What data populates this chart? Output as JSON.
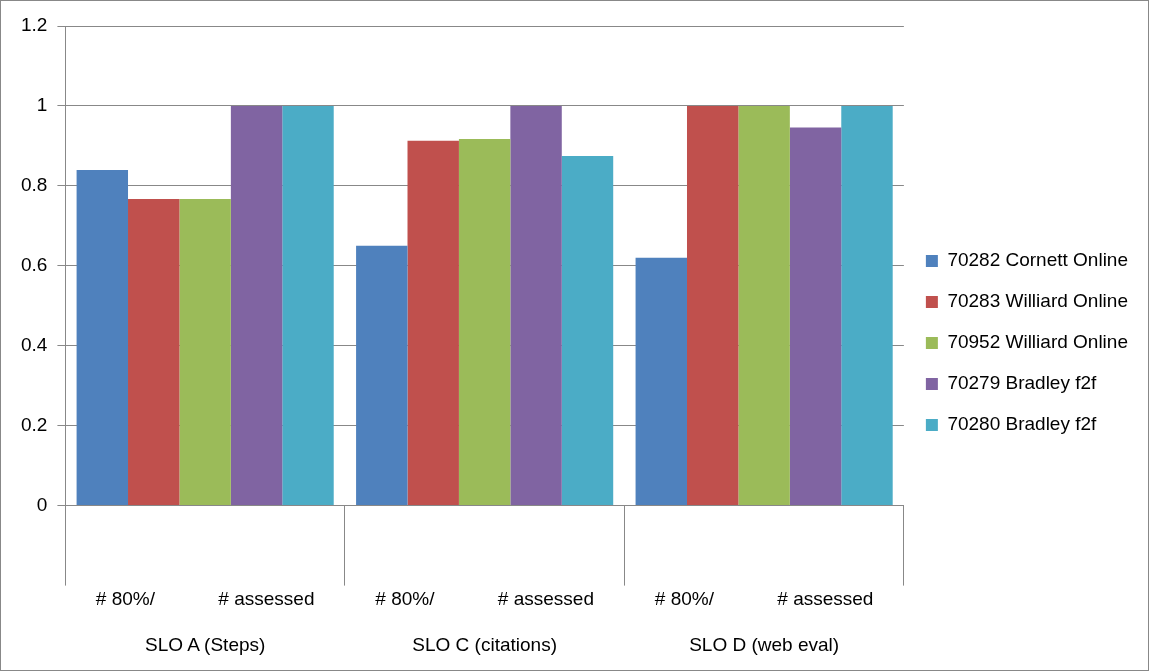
{
  "chart_data": {
    "type": "bar",
    "categories": [
      "SLO A (Steps)",
      "SLO C (citations)",
      "SLO D (web eval)"
    ],
    "annotations": [
      "# 80%/            # assessed",
      "# 80%/            # assessed",
      "# 80%/            # assessed"
    ],
    "series": [
      {
        "name": "70282 Cornett Online",
        "color": "#4f81bd",
        "values": [
          0.84,
          0.65,
          0.62
        ]
      },
      {
        "name": "70283 Williard Online",
        "color": "#c0504d",
        "values": [
          0.767,
          0.913,
          1
        ]
      },
      {
        "name": "70952 Williard Online",
        "color": "#9bbb59",
        "values": [
          0.767,
          0.917,
          1
        ]
      },
      {
        "name": "70279 Bradley f2f",
        "color": "#8064a2",
        "values": [
          1,
          1,
          0.946
        ]
      },
      {
        "name": "70280 Bradley f2f",
        "color": "#4bacc6",
        "values": [
          1,
          0.875,
          1
        ]
      }
    ],
    "ylim": [
      0,
      1.2
    ],
    "yticks": [
      0,
      0.2,
      0.4,
      0.6,
      0.8,
      1,
      1.2
    ],
    "grid": "y",
    "legend": "right"
  }
}
